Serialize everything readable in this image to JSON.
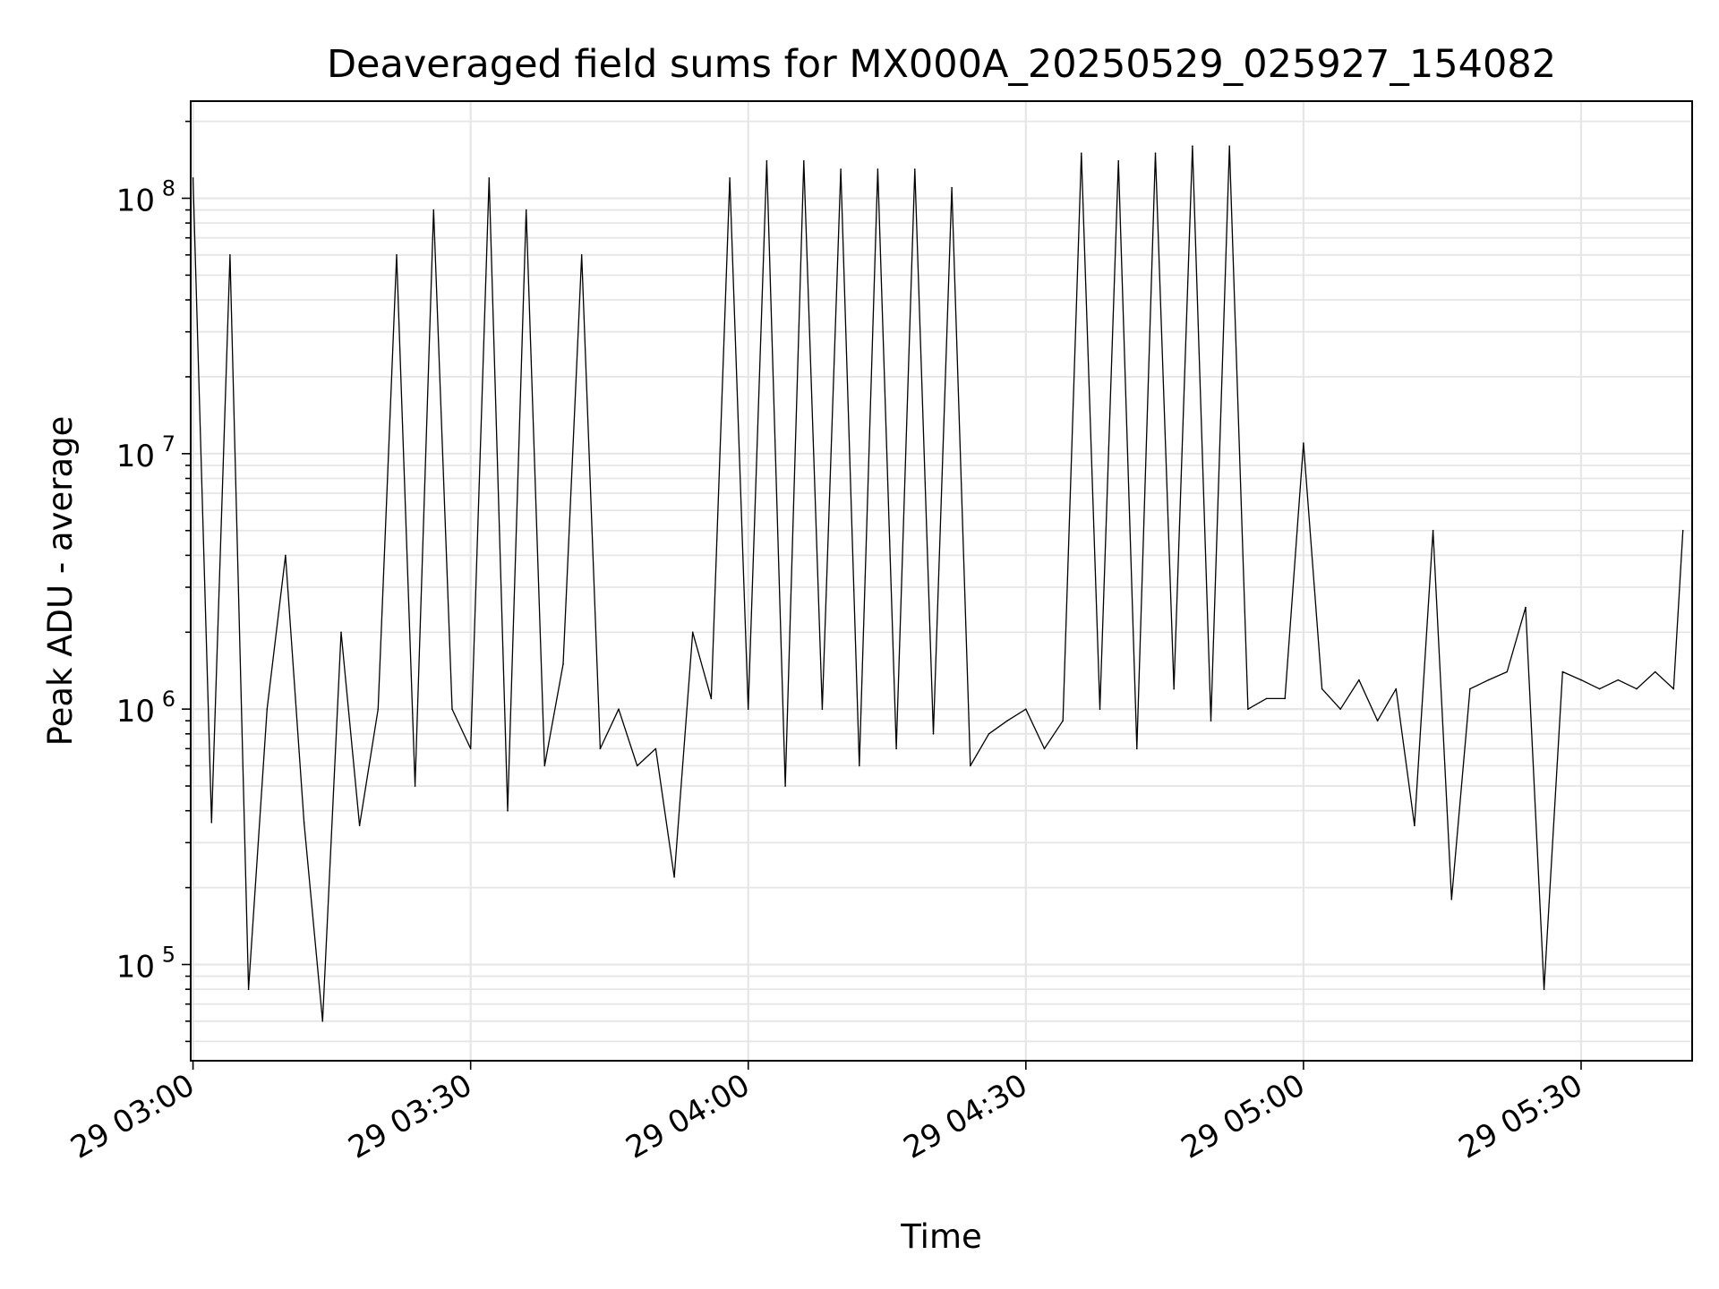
{
  "chart_data": {
    "type": "line",
    "title": "Deaveraged field sums for MX000A_20250529_025927_154082",
    "xlabel": "Time",
    "ylabel": "Peak ADU - average",
    "yscale": "log",
    "ylim": [
      42000,
      240000000
    ],
    "xlim": [
      "29 02:59:45",
      "29 05:42:00"
    ],
    "grid": true,
    "line_color": "#000000",
    "grid_color": "#e6e6e6",
    "x_ticks": [
      "29 03:00",
      "29 03:30",
      "29 04:00",
      "29 04:30",
      "29 05:00",
      "29 05:30"
    ],
    "y_ticks": [
      {
        "base": "10",
        "exp": "5",
        "value": 100000
      },
      {
        "base": "10",
        "exp": "6",
        "value": 1000000
      },
      {
        "base": "10",
        "exp": "7",
        "value": 10000000
      },
      {
        "base": "10",
        "exp": "8",
        "value": 100000000
      }
    ],
    "series": [
      {
        "x": [
          "03:00",
          "03:02",
          "03:04",
          "03:06",
          "03:08",
          "03:10",
          "03:12",
          "03:14",
          "03:16",
          "03:18",
          "03:20",
          "03:22",
          "03:24",
          "03:26",
          "03:28",
          "03:30",
          "03:32",
          "03:34",
          "03:36",
          "03:38",
          "03:40",
          "03:42",
          "03:44",
          "03:46",
          "03:48",
          "03:50",
          "03:52",
          "03:54",
          "03:56",
          "03:58",
          "04:00",
          "04:02",
          "04:04",
          "04:06",
          "04:08",
          "04:10",
          "04:12",
          "04:14",
          "04:16",
          "04:18",
          "04:20",
          "04:22",
          "04:24",
          "04:26",
          "04:28",
          "04:30",
          "04:32",
          "04:34",
          "04:36",
          "04:38",
          "04:40",
          "04:42",
          "04:44",
          "04:46",
          "04:48",
          "04:50",
          "04:52",
          "04:54",
          "04:56",
          "04:58",
          "05:00",
          "05:02",
          "05:04",
          "05:06",
          "05:08",
          "05:10",
          "05:12",
          "05:14",
          "05:16",
          "05:18",
          "05:20",
          "05:22",
          "05:24",
          "05:26",
          "05:28",
          "05:30",
          "05:32",
          "05:34",
          "05:36",
          "05:38",
          "05:40",
          "05:41"
        ],
        "y": [
          120000000,
          360000,
          60000000,
          80000,
          1000000,
          4000000,
          360000,
          60000,
          2000000,
          350000,
          1000000,
          60000000,
          500000,
          90000000,
          1000000,
          700000,
          120000000,
          400000,
          90000000,
          600000,
          1500000,
          60000000,
          700000,
          1000000,
          600000,
          700000,
          220000,
          2000000,
          1100000,
          120000000,
          1000000,
          140000000,
          500000,
          140000000,
          1000000,
          130000000,
          600000,
          130000000,
          700000,
          130000000,
          800000,
          110000000,
          600000,
          800000,
          900000,
          1000000,
          700000,
          900000,
          150000000,
          1000000,
          140000000,
          700000,
          150000000,
          1200000,
          160000000,
          900000,
          160000000,
          1000000,
          1100000,
          1100000,
          11000000,
          1200000,
          1000000,
          1300000,
          900000,
          1200000,
          350000,
          5000000,
          180000,
          1200000,
          1300000,
          1400000,
          2500000,
          80000,
          1400000,
          1300000,
          1200000,
          1300000,
          1200000,
          1400000,
          1200000,
          5000000
        ]
      }
    ]
  }
}
